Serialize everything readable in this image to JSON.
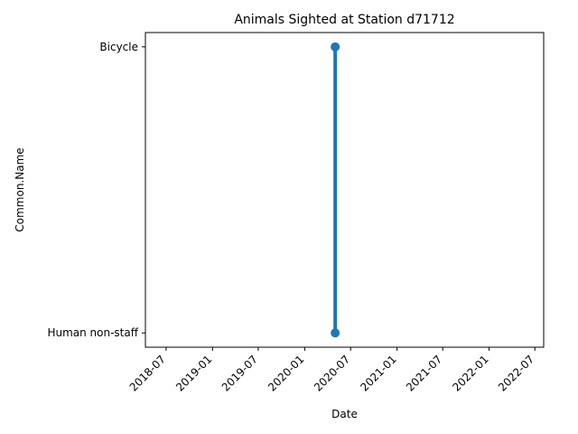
{
  "chart_data": {
    "type": "line",
    "title": "Animals Sighted at Station d71712",
    "xlabel": "Date",
    "ylabel": "Common.Name",
    "x_tick_labels": [
      "2018-07",
      "2019-01",
      "2019-07",
      "2020-01",
      "2020-07",
      "2021-01",
      "2021-07",
      "2022-01",
      "2022-07"
    ],
    "y_categories": [
      "Human non-staff",
      "Bicycle"
    ],
    "xlim": [
      "2018-04-10",
      "2022-08-05"
    ],
    "grid": false,
    "series": [
      {
        "color": "#1f77b4",
        "points": [
          {
            "x": "2020-05-01",
            "y": "Bicycle"
          },
          {
            "x": "2020-05-01",
            "y": "Human non-staff"
          }
        ]
      }
    ]
  }
}
